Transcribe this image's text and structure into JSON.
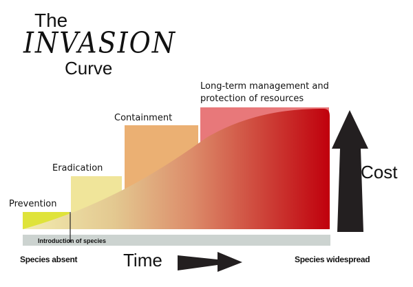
{
  "title": {
    "line1": "The",
    "line2": "INVASION",
    "line3": "Curve"
  },
  "stages": [
    {
      "label": "Prevention",
      "color": "#dfe33a"
    },
    {
      "label": "Eradication",
      "color": "#f0e59a"
    },
    {
      "label": "Containment",
      "color": "#ebb073"
    },
    {
      "label": "Long-term management and protection of resources",
      "line1": "Long-term management and",
      "line2": "protection of resources",
      "color": "#e8787a"
    }
  ],
  "curve_colors": {
    "start": "#f2ecb0",
    "mid": "#dc9a6c",
    "end": "#c0000c"
  },
  "timeline": {
    "introduction": "Introduction of species",
    "start": "Species absent",
    "end": "Species widespread",
    "bar_color": "#ccd3d0"
  },
  "axes": {
    "time": "Time",
    "cost": "Cost"
  }
}
